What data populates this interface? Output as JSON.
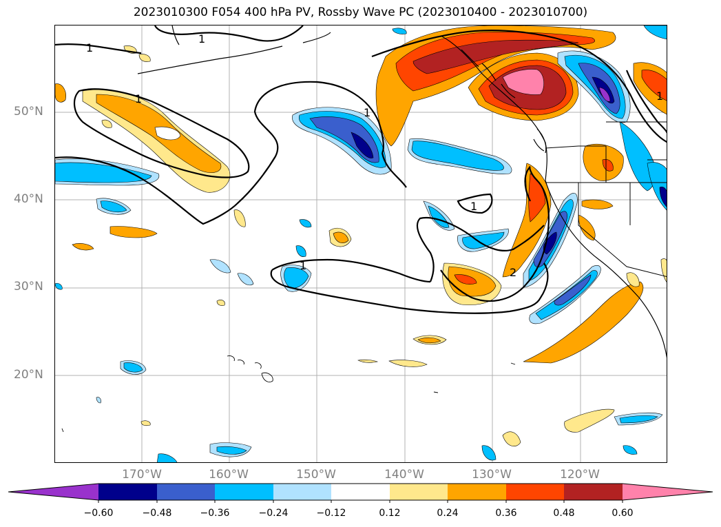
{
  "figure": {
    "title": "2023010300 F054 400 hPa PV, Rossby Wave PC (2023010400 - 2023010700)"
  },
  "axes": {
    "latitude_labels": [
      "50°N",
      "40°N",
      "30°N",
      "20°N"
    ],
    "longitude_labels": [
      "170°W",
      "160°W",
      "150°W",
      "140°W",
      "130°W",
      "120°W"
    ]
  },
  "contour_labels": {
    "pv_1_a": "1",
    "pv_1_b": "1",
    "pv_1_c": "1",
    "pv_1_d": "1",
    "pv_1_e": "1",
    "pv_1_f": "1",
    "pv_1_g": "1",
    "pv_2": "2"
  },
  "colorbar": {
    "tick_labels": [
      "−0.60",
      "−0.48",
      "−0.36",
      "−0.24",
      "−0.12",
      "0.12",
      "0.24",
      "0.36",
      "0.48",
      "0.60"
    ],
    "colors": {
      "under": "#9932cc",
      "bin_1": "#00008b",
      "bin_2": "#3a5fcd",
      "bin_3": "#00bfff",
      "bin_4": "#b0e2ff",
      "bin_5": "#ffffff",
      "bin_6": "#ffe88c",
      "bin_7": "#ffa500",
      "bin_8": "#ff4500",
      "bin_9": "#b22222",
      "over": "#ff82ab"
    }
  }
}
